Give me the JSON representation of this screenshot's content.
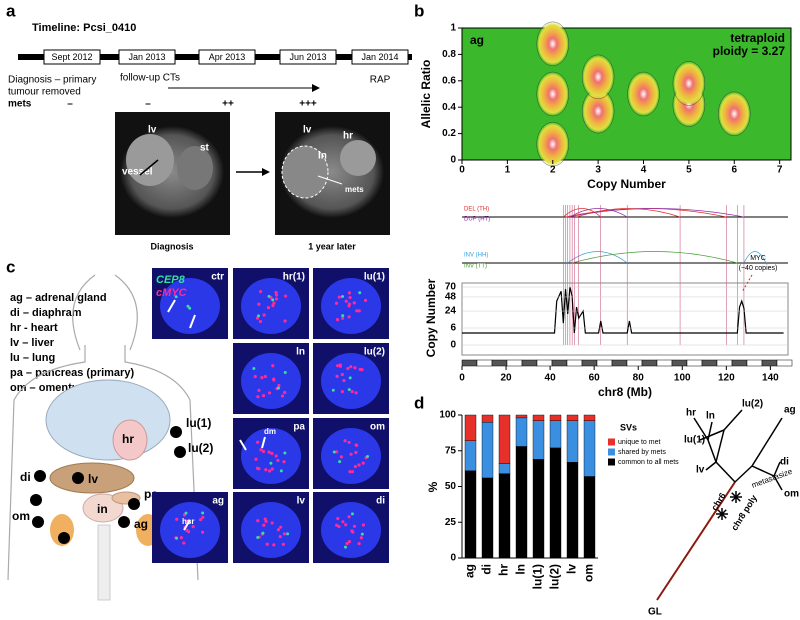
{
  "panel_labels": [
    "a",
    "b",
    "c",
    "d"
  ],
  "timeline": {
    "title": "Timeline: Pcsi_0410",
    "dates": [
      "Sept 2012",
      "Jan 2013",
      "Apr 2013",
      "Jun 2013",
      "Jan 2014"
    ],
    "events": [
      "Diagnosis – primary",
      "tumour removed",
      "follow-up CTs",
      "RAP"
    ],
    "mets_label": "mets",
    "mets": [
      "–",
      "–",
      "++",
      "+++"
    ]
  },
  "ct": {
    "left_labels": [
      "lv",
      "st",
      "vessel"
    ],
    "right_labels": [
      "lv",
      "hr",
      "ln",
      "mets"
    ],
    "captions": [
      "Diagnosis",
      "1 year later"
    ]
  },
  "tissue_key": [
    "ag – adrenal gland",
    "di – diaphram",
    "hr - heart",
    "lv – liver",
    "lu – lung",
    "pa – pancreas (primary)",
    "om – omentum"
  ],
  "body_labels": [
    "hr",
    "lu(1)",
    "lu(2)",
    "di",
    "lv",
    "pa",
    "om",
    "in",
    "ag"
  ],
  "fish": {
    "probes": [
      {
        "name": "CEP8",
        "color": "#33e0a0"
      },
      {
        "name": "cMYC",
        "color": "#ff2a9a"
      }
    ],
    "tiles": [
      "ctr",
      "hr(1)",
      "lu(1)",
      "ln",
      "lu(2)",
      "pa",
      "om",
      "ag",
      "lv",
      "di"
    ],
    "annotations": [
      "dm",
      "hsr"
    ]
  },
  "chart_data": [
    {
      "type": "density",
      "title": "ag",
      "annotation": [
        "tetraploid",
        "ploidy = 3.27"
      ],
      "x_label": "Copy Number",
      "y_label": "Allelic Ratio",
      "xlim": [
        0,
        7.25
      ],
      "ylim": [
        0,
        1
      ],
      "xticks": [
        0,
        1,
        2,
        3,
        4,
        5,
        6,
        7
      ],
      "yticks": [
        0,
        0.2,
        0.4,
        0.6,
        0.8,
        1
      ],
      "peaks": {
        "x": [
          2,
          2,
          2,
          3,
          3,
          4,
          5,
          5,
          6
        ],
        "y": [
          0.12,
          0.5,
          0.88,
          0.37,
          0.63,
          0.5,
          0.42,
          0.58,
          0.35
        ]
      }
    },
    {
      "type": "line",
      "x_label": "chr8 (Mb)",
      "y_label": "Copy Number",
      "yscale": "sqrt",
      "xlim": [
        0,
        148
      ],
      "ylim": [
        0,
        70
      ],
      "xticks": [
        0,
        20,
        40,
        60,
        80,
        100,
        120,
        140
      ],
      "yticks": [
        0,
        6,
        24,
        48,
        70
      ],
      "sv_types": [
        {
          "name": "DEL (TH)",
          "color": "#e03030"
        },
        {
          "name": "DUP (HT)",
          "color": "#9030a0"
        },
        {
          "name": "INV (HH)",
          "color": "#30a0e0"
        },
        {
          "name": "INV (TT)",
          "color": "#40a030"
        }
      ],
      "annotation": [
        "MYC",
        "(~40 copies)"
      ],
      "color": "#000000",
      "x": [
        0,
        42,
        43,
        45,
        46,
        47,
        48,
        49,
        50,
        51,
        52,
        53,
        55,
        56,
        62,
        63,
        64,
        75,
        76,
        77,
        125,
        126,
        127,
        128,
        129,
        146
      ],
      "values": [
        3,
        3,
        40,
        60,
        10,
        65,
        20,
        70,
        50,
        3,
        30,
        15,
        24,
        3,
        3,
        12,
        3,
        3,
        12,
        3,
        3,
        30,
        40,
        28,
        3,
        3
      ]
    },
    {
      "type": "bar",
      "stacked": true,
      "y_label": "%",
      "legend_title": "SVs",
      "categories": [
        "ag",
        "di",
        "hr",
        "ln",
        "lu(1)",
        "lu(2)",
        "lv",
        "om"
      ],
      "ylim": [
        0,
        100
      ],
      "yticks": [
        0,
        25,
        50,
        75,
        100
      ],
      "series": [
        {
          "name": "common to all mets",
          "color": "#000000",
          "values": [
            61,
            56,
            59,
            78,
            69,
            77,
            67,
            57
          ]
        },
        {
          "name": "shared by mets",
          "color": "#3b8fe0",
          "values": [
            21,
            39,
            7,
            20,
            27,
            19,
            29,
            39
          ]
        },
        {
          "name": "unique to met",
          "color": "#e8302a",
          "values": [
            18,
            5,
            34,
            2,
            4,
            4,
            4,
            4
          ]
        }
      ]
    }
  ],
  "tree": {
    "leaves": [
      "hr",
      "ln",
      "lu(2)",
      "ag",
      "lu(1)",
      "di",
      "om",
      "lv"
    ],
    "events": [
      "metastasize",
      "chr6",
      "chr8 poly"
    ],
    "root": "GL"
  }
}
